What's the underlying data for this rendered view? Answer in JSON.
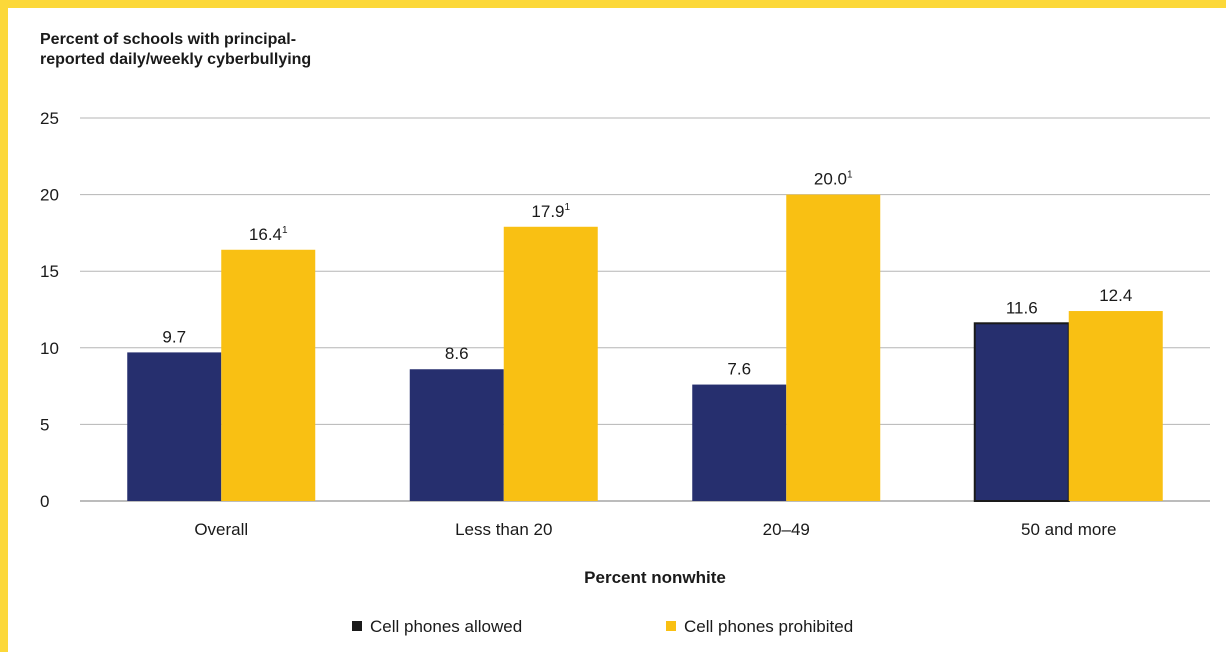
{
  "chart_data": {
    "type": "bar",
    "ylabel": "Percent of schools with principal-reported daily/weekly cyberbullying",
    "xlabel": "Percent nonwhite",
    "ylim": [
      0,
      25
    ],
    "yticks": [
      0,
      5,
      10,
      15,
      20,
      25
    ],
    "grid": true,
    "legend_position": "bottom",
    "categories": [
      "Overall",
      "Less than 20",
      "20–49",
      "50 and more"
    ],
    "series": [
      {
        "name": "Cell phones allowed",
        "color": "#262f6e",
        "values": [
          9.7,
          8.6,
          7.6,
          11.6
        ],
        "labels": [
          "9.7",
          "8.6",
          "7.6",
          "11.6"
        ],
        "superscripts": [
          "",
          "",
          "",
          ""
        ]
      },
      {
        "name": "Cell phones prohibited",
        "color": "#f9c013",
        "values": [
          16.4,
          17.9,
          20.0,
          12.4
        ],
        "labels": [
          "16.4",
          "17.9",
          "20.0",
          "12.4"
        ],
        "superscripts": [
          "1",
          "1",
          "1",
          ""
        ]
      }
    ]
  },
  "ylabel_lines": [
    "Percent of schools with principal-",
    "reported daily/weekly cyberbullying"
  ]
}
